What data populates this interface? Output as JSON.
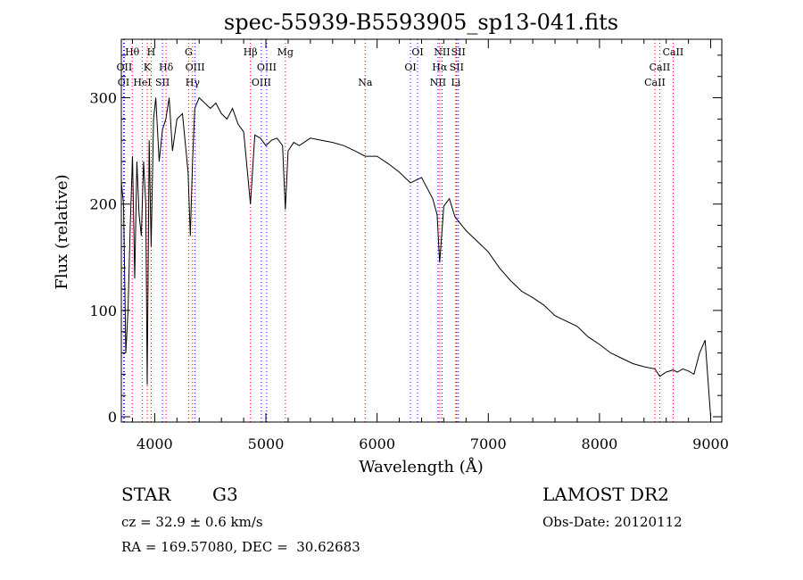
{
  "chart_data": {
    "type": "line",
    "title": "spec-55939-B5593905_sp13-041.fits",
    "xlabel": "Wavelength (Å)",
    "ylabel": "Flux (relative)",
    "xlim": [
      3700,
      9100
    ],
    "ylim": [
      -5,
      355
    ],
    "x_ticks": [
      4000,
      5000,
      6000,
      7000,
      8000,
      9000
    ],
    "y_ticks": [
      0,
      100,
      200,
      300
    ],
    "grid": false,
    "series": [
      {
        "color": "#000000",
        "x": [
          3700,
          3720,
          3740,
          3760,
          3780,
          3800,
          3820,
          3840,
          3860,
          3880,
          3900,
          3920,
          3933,
          3950,
          3968,
          3990,
          4010,
          4040,
          4070,
          4100,
          4130,
          4160,
          4200,
          4250,
          4300,
          4320,
          4340,
          4360,
          4400,
          4450,
          4500,
          4550,
          4600,
          4650,
          4700,
          4750,
          4800,
          4861,
          4900,
          4950,
          5000,
          5050,
          5100,
          5150,
          5175,
          5200,
          5250,
          5300,
          5400,
          5500,
          5600,
          5700,
          5800,
          5893,
          6000,
          6100,
          6200,
          6300,
          6400,
          6450,
          6500,
          6540,
          6563,
          6600,
          6650,
          6700,
          6800,
          6900,
          7000,
          7100,
          7200,
          7300,
          7400,
          7500,
          7600,
          7700,
          7800,
          7900,
          8000,
          8100,
          8200,
          8300,
          8400,
          8498,
          8542,
          8600,
          8662,
          8700,
          8750,
          8800,
          8850,
          8900,
          8950,
          9000
        ],
        "y": [
          220,
          200,
          60,
          100,
          180,
          245,
          130,
          240,
          190,
          170,
          240,
          200,
          30,
          260,
          160,
          280,
          300,
          240,
          270,
          280,
          300,
          250,
          280,
          285,
          230,
          170,
          240,
          290,
          300,
          295,
          290,
          295,
          285,
          280,
          290,
          275,
          268,
          200,
          265,
          262,
          255,
          260,
          262,
          255,
          195,
          250,
          258,
          255,
          262,
          260,
          258,
          255,
          250,
          245,
          245,
          238,
          230,
          220,
          225,
          215,
          205,
          190,
          145,
          198,
          205,
          188,
          175,
          165,
          155,
          140,
          128,
          118,
          112,
          105,
          95,
          90,
          85,
          75,
          68,
          60,
          55,
          50,
          47,
          45,
          38,
          42,
          44,
          42,
          45,
          43,
          40,
          60,
          72,
          0
        ]
      }
    ],
    "line_ids": [
      {
        "label": "Hθ",
        "wavelength": 3798,
        "color": "#ff0000",
        "row": 0
      },
      {
        "label": "OII",
        "wavelength": 3727,
        "color": "#0000ff",
        "row": 1
      },
      {
        "label": "OI",
        "wavelength": 3720,
        "color": "#0000ff",
        "row": 2
      },
      {
        "label": "H",
        "wavelength": 3968,
        "color": "#ff0000",
        "row": 0
      },
      {
        "label": "K",
        "wavelength": 3933,
        "color": "#ff0000",
        "row": 1
      },
      {
        "label": "HeI",
        "wavelength": 3889,
        "color": "#ff0000",
        "row": 2
      },
      {
        "label": "Hδ",
        "wavelength": 4102,
        "color": "#ff0000",
        "row": 1
      },
      {
        "label": "SII",
        "wavelength": 4070,
        "color": "#0000ff",
        "row": 2
      },
      {
        "label": "G",
        "wavelength": 4305,
        "color": "#ff0000",
        "row": 0
      },
      {
        "label": "OIII",
        "wavelength": 4363,
        "color": "#0000ff",
        "row": 1
      },
      {
        "label": "Hγ",
        "wavelength": 4341,
        "color": "#ff0000",
        "row": 2
      },
      {
        "label": "Hβ",
        "wavelength": 4861,
        "color": "#ff0000",
        "row": 0
      },
      {
        "label": "OIII",
        "wavelength": 5007,
        "color": "#0000ff",
        "row": 1
      },
      {
        "label": "OIII",
        "wavelength": 4959,
        "color": "#0000ff",
        "row": 2
      },
      {
        "label": "Mg",
        "wavelength": 5175,
        "color": "#ff0000",
        "row": 0
      },
      {
        "label": "Na",
        "wavelength": 5893,
        "color": "#ff0000",
        "row": 2
      },
      {
        "label": "OI",
        "wavelength": 6364,
        "color": "#0000ff",
        "row": 0
      },
      {
        "label": "OI",
        "wavelength": 6300,
        "color": "#0000ff",
        "row": 1
      },
      {
        "label": "NII",
        "wavelength": 6584,
        "color": "#0000ff",
        "row": 0
      },
      {
        "label": "SII",
        "wavelength": 6731,
        "color": "#0000ff",
        "row": 0
      },
      {
        "label": "Hα",
        "wavelength": 6563,
        "color": "#ff0000",
        "row": 1
      },
      {
        "label": "SII",
        "wavelength": 6716,
        "color": "#0000ff",
        "row": 1
      },
      {
        "label": "NII",
        "wavelength": 6548,
        "color": "#0000ff",
        "row": 2
      },
      {
        "label": "Li",
        "wavelength": 6708,
        "color": "#ff0000",
        "row": 2
      },
      {
        "label": "CaII",
        "wavelength": 8662,
        "color": "#ff0000",
        "row": 0
      },
      {
        "label": "CaII",
        "wavelength": 8542,
        "color": "#ff0000",
        "row": 1
      },
      {
        "label": "CaII",
        "wavelength": 8498,
        "color": "#ff0000",
        "row": 2
      }
    ]
  },
  "info": {
    "class": "STAR",
    "subclass": "G3",
    "survey": "LAMOST DR2",
    "cz": "cz = 32.9 ± 0.6 km/s",
    "obs_date": "Obs-Date: 20120112",
    "coords": "RA = 169.57080, DEC =  30.62683"
  }
}
